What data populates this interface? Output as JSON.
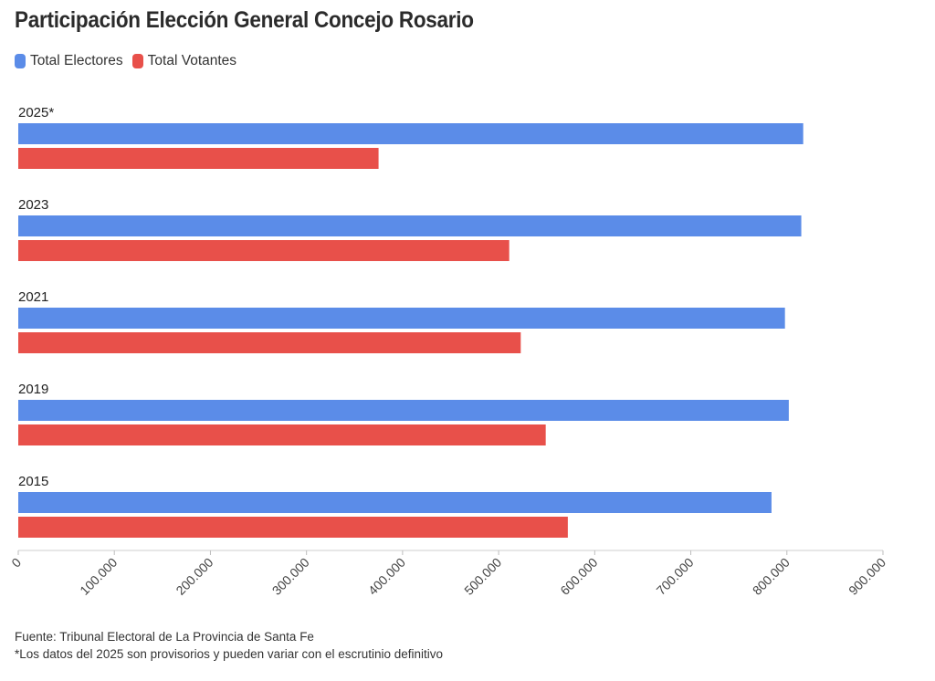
{
  "title": "Participación Elección General Concejo Rosario",
  "chart_data": {
    "type": "bar",
    "orientation": "horizontal",
    "categories": [
      "2025*",
      "2023",
      "2021",
      "2019",
      "2015"
    ],
    "series": [
      {
        "name": "Total Electores",
        "color": "#5b8ce8",
        "values": [
          817000,
          815000,
          798000,
          802000,
          784000
        ]
      },
      {
        "name": "Total Votantes",
        "color": "#e8504a",
        "values": [
          375000,
          511000,
          523000,
          549000,
          572000
        ]
      }
    ],
    "xlim": [
      0,
      900000
    ],
    "xticks": [
      "0",
      "100.000",
      "200.000",
      "300.000",
      "400.000",
      "500.000",
      "600.000",
      "700.000",
      "800.000",
      "900.000"
    ],
    "legend_position": "top-left",
    "grid": false
  },
  "footer": {
    "source": "Fuente: Tribunal Electoral de La Provincia de Santa Fe",
    "note": "*Los datos del 2025 son provisorios y pueden variar con el escrutinio definitivo"
  }
}
